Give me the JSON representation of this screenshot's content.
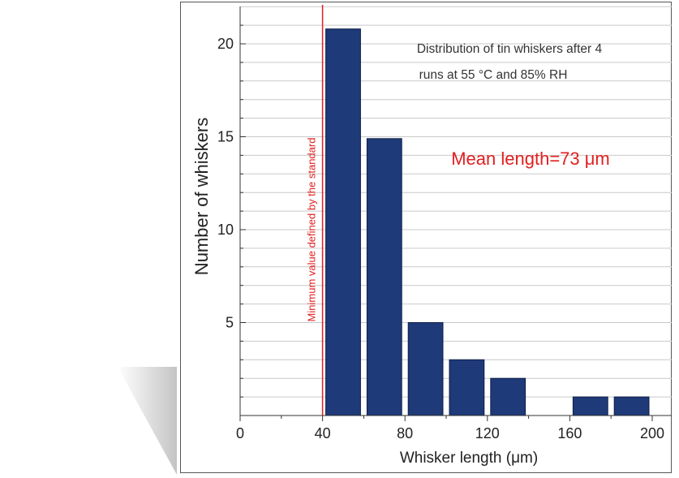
{
  "chart_data": {
    "type": "bar",
    "x": [
      50,
      70,
      90,
      110,
      130,
      150,
      170,
      190
    ],
    "values": [
      20.8,
      14.9,
      5,
      3,
      2,
      0,
      1,
      1
    ],
    "xlabel": "Whisker length (μm)",
    "ylabel": "Number of whiskers",
    "xlim": [
      0,
      200
    ],
    "ylim": [
      0,
      22
    ],
    "xticks": [
      "0",
      "40",
      "80",
      "120",
      "160",
      "200"
    ],
    "yticks": [
      "5",
      "10",
      "15",
      "20"
    ],
    "grid": "horizontal",
    "bar_color": "#1f3a78",
    "annotations": {
      "note_line1": "Distribution of tin whiskers after 4",
      "note_line2": "runs at 55 °C and 85% RH",
      "mean": "Mean length=73 μm",
      "min_line_label": "Minimum value defined by the standard",
      "min_line_x": 40,
      "accent_color": "#e02020"
    }
  }
}
